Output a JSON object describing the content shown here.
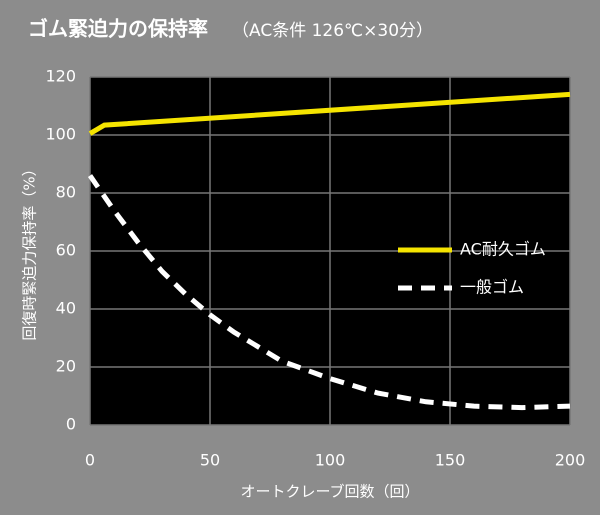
{
  "chart_data": {
    "type": "line",
    "title": "ゴム緊迫力の保持率",
    "subtitle": "（AC条件 126℃×30分）",
    "x_label": "オートクレーブ回数（回）",
    "y_label": "回復時緊迫力保持率（%）",
    "xlim": [
      0,
      200
    ],
    "xticks": [
      0,
      50,
      100,
      150,
      200
    ],
    "ylim": [
      0,
      120
    ],
    "yticks": [
      0,
      20,
      40,
      60,
      80,
      100,
      120
    ],
    "grid": true,
    "series": [
      {
        "name": "AC耐久ゴム",
        "color": "#f5e400",
        "dash": false,
        "x": [
          0,
          6,
          200
        ],
        "values": [
          100.5,
          103.4,
          114
        ]
      },
      {
        "name": "一般ゴム",
        "color": "#ffffff",
        "dash": true,
        "x": [
          0,
          10,
          20,
          30,
          40,
          50,
          60,
          70,
          80,
          90,
          100,
          120,
          140,
          160,
          180,
          200
        ],
        "values": [
          86,
          74,
          63,
          53,
          45,
          38,
          32,
          27,
          22,
          19,
          16,
          11,
          8,
          6.5,
          6,
          6.5
        ]
      }
    ]
  }
}
